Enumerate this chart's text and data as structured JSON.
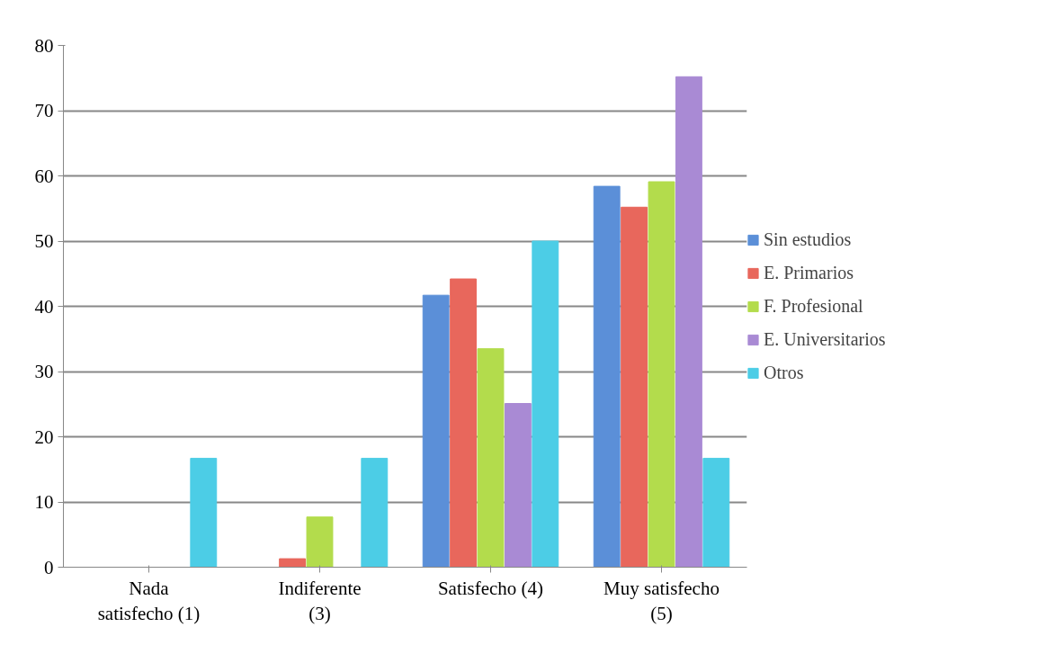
{
  "chart_data": {
    "type": "bar",
    "categories": [
      "Nada satisfecho (1)",
      "Indiferente (3)",
      "Satisfecho (4)",
      "Muy satisfecho (5)"
    ],
    "series": [
      {
        "name": "Sin estudios",
        "color": "#5b8fd8",
        "values": [
          0,
          0,
          41.7,
          58.4
        ]
      },
      {
        "name": "E. Primarios",
        "color": "#e8675c",
        "values": [
          0,
          1.3,
          44.2,
          55.2
        ]
      },
      {
        "name": "F. Profesional",
        "color": "#b3dc4c",
        "values": [
          0,
          7.7,
          33.5,
          59.1
        ]
      },
      {
        "name": "E. Universitarios",
        "color": "#a98ad4",
        "values": [
          0,
          0,
          25.1,
          75.2
        ]
      },
      {
        "name": "Otros",
        "color": "#4ccde6",
        "values": [
          16.7,
          16.7,
          50,
          16.7
        ]
      }
    ],
    "ylim": [
      0,
      80
    ],
    "yticks": [
      0,
      10,
      20,
      30,
      40,
      50,
      60,
      70,
      80
    ],
    "grid": "y",
    "legend": "right"
  }
}
